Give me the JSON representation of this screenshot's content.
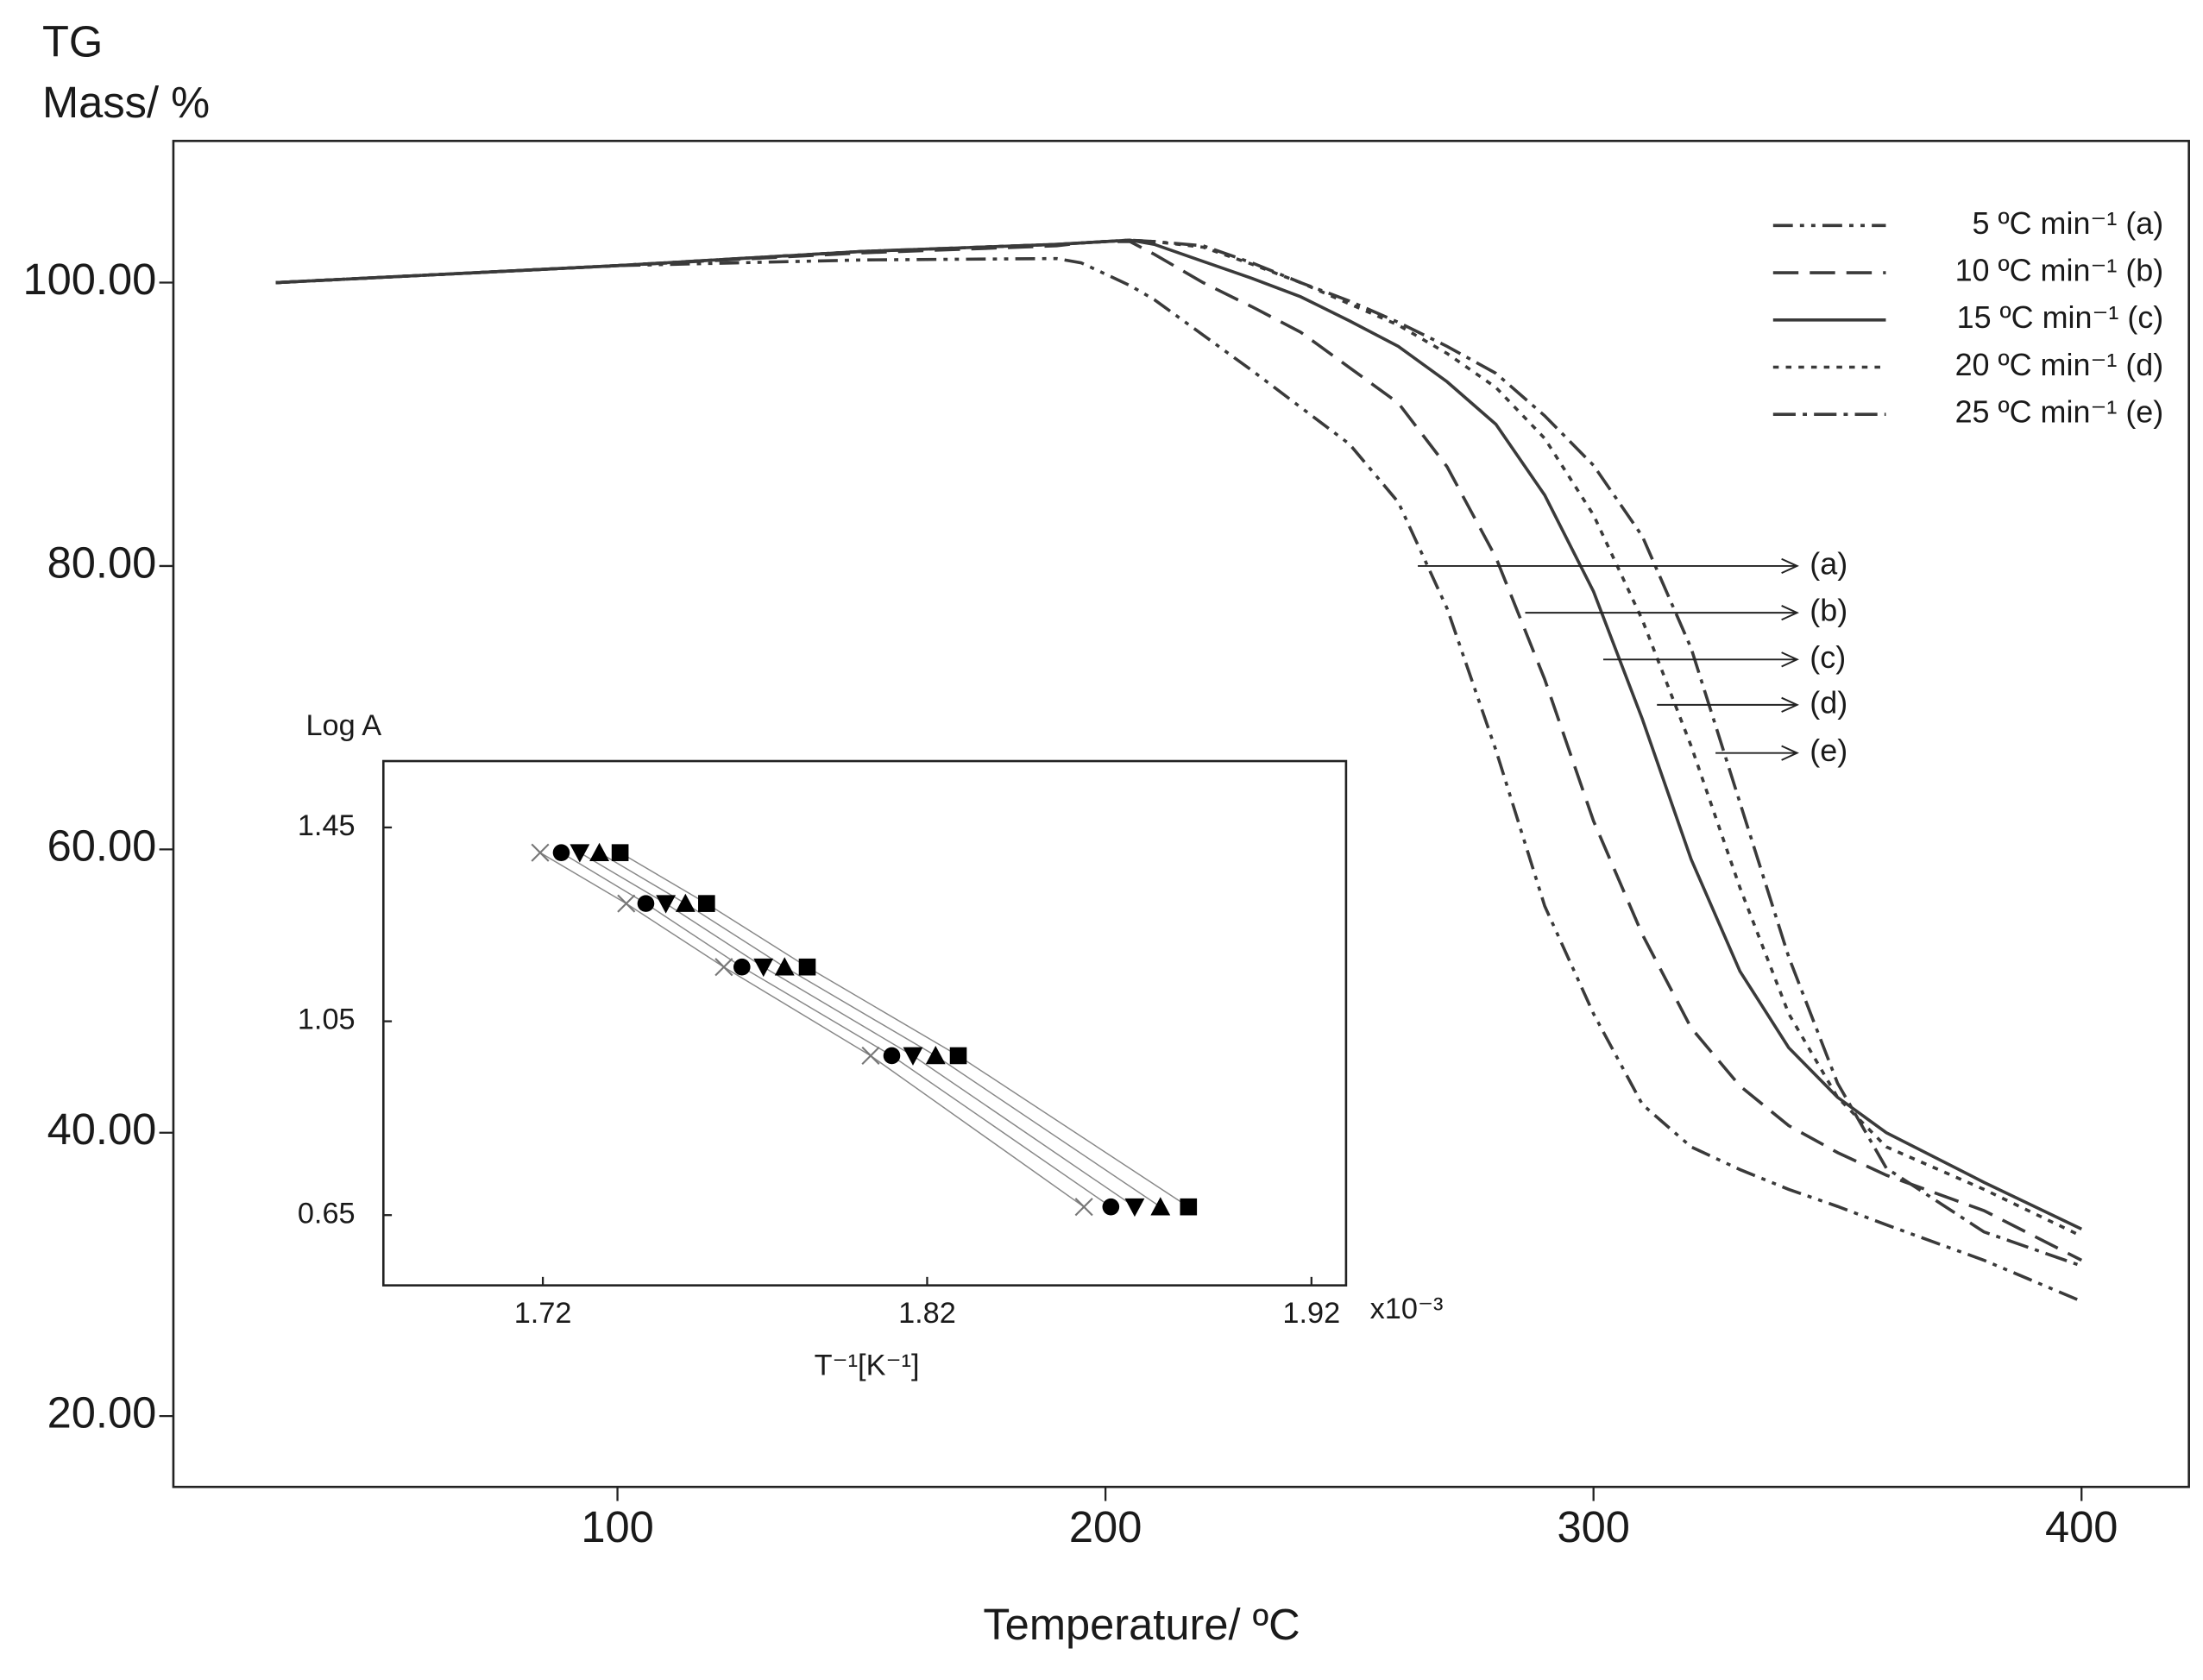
{
  "chart_data": [
    {
      "type": "line",
      "title": "TG",
      "ylabel": "Mass/ %",
      "xlabel": "Temperature/ ºC",
      "x": [
        30,
        100,
        150,
        190,
        195,
        200,
        205,
        210,
        220,
        230,
        240,
        250,
        260,
        270,
        280,
        290,
        300,
        310,
        320,
        330,
        340,
        350,
        360,
        380,
        400
      ],
      "series": [
        {
          "name": "5 ºC min⁻¹ (a)",
          "color": "#3a3a3a",
          "dash": "dashdotdot",
          "values": [
            100,
            101.2,
            101.6,
            101.7,
            101.4,
            100.6,
            99.8,
            98.8,
            96.3,
            93.8,
            91.2,
            88.6,
            84.5,
            77,
            67,
            56,
            48.4,
            42,
            39,
            37.4,
            36,
            34.8,
            33.5,
            31,
            28.1
          ]
        },
        {
          "name": "10 ºC min⁻¹ (b)",
          "color": "#3a3a3a",
          "dash": "dashed",
          "values": [
            100,
            101.2,
            102.1,
            102.6,
            102.8,
            102.9,
            102.9,
            102,
            100,
            98.3,
            96.5,
            94,
            91.5,
            87,
            80.6,
            72,
            62,
            54,
            47.4,
            43.3,
            40.5,
            38.6,
            37,
            34.5,
            31
          ]
        },
        {
          "name": "15 ºC min⁻¹ (c)",
          "color": "#3a3a3a",
          "dash": "solid",
          "values": [
            100,
            101.2,
            102.2,
            102.7,
            102.8,
            102.9,
            103,
            102.7,
            101.5,
            100.3,
            99,
            97.3,
            95.5,
            93,
            90,
            85,
            78.2,
            69.2,
            59.3,
            51.4,
            46,
            42.5,
            40,
            36.5,
            33.2
          ]
        },
        {
          "name": "20 ºC min⁻¹ (d)",
          "color": "#3a3a3a",
          "dash": "dotted",
          "values": [
            100,
            101.2,
            102.2,
            102.7,
            102.8,
            102.9,
            103,
            102.9,
            102.5,
            101.3,
            100,
            98.5,
            97,
            95,
            92.6,
            89,
            83.6,
            76.2,
            67.3,
            57.3,
            48.4,
            42.5,
            39,
            36,
            32.7
          ]
        },
        {
          "name": "25 ºC min⁻¹ (e)",
          "color": "#3a3a3a",
          "dash": "dashdot",
          "values": [
            100,
            101.2,
            102.2,
            102.7,
            102.8,
            102.9,
            103,
            102.9,
            102.6,
            101.4,
            100,
            98.7,
            97.2,
            95.5,
            93.6,
            90.6,
            87.1,
            82.1,
            74.2,
            63.3,
            52.4,
            43.5,
            37.5,
            33,
            30.6
          ]
        }
      ],
      "annotations": [
        {
          "text": "(a)",
          "x": 264,
          "y": 80
        },
        {
          "text": "(b)",
          "x": 286,
          "y": 76.7
        },
        {
          "text": "(c)",
          "x": 302,
          "y": 73.4
        },
        {
          "text": "(d)",
          "x": 313,
          "y": 70.2
        },
        {
          "text": "(e)",
          "x": 325,
          "y": 66.8
        }
      ],
      "xlim": [
        9,
        422
      ],
      "xticks": [
        100,
        200,
        300,
        400
      ],
      "ylim": [
        15,
        110
      ],
      "yticks": [
        {
          "value": 20,
          "label": "20.00"
        },
        {
          "value": 40,
          "label": "40.00"
        },
        {
          "value": 60,
          "label": "60.00"
        },
        {
          "value": 80,
          "label": "80.00"
        },
        {
          "value": 100,
          "label": "100.00"
        }
      ],
      "legend": "upper right"
    },
    {
      "type": "scatter",
      "ylabel": "Log A",
      "xlabel": "T⁻¹[K⁻¹]",
      "x_multiplier": "x10⁻³",
      "series": [
        {
          "marker": "x",
          "color": "#777777",
          "x": [
            1.7193,
            1.7417,
            1.7671,
            1.8053,
            1.8608
          ],
          "values": [
            1.398,
            1.293,
            1.162,
            0.979,
            0.667
          ]
        },
        {
          "marker": "circle",
          "color": "#000000",
          "x": [
            1.7248,
            1.7468,
            1.7718,
            1.8108,
            1.8678
          ],
          "values": [
            1.398,
            1.293,
            1.162,
            0.979,
            0.667
          ]
        },
        {
          "marker": "triangle-down",
          "color": "#000000",
          "x": [
            1.7296,
            1.752,
            1.7774,
            1.8163,
            1.874
          ],
          "values": [
            1.398,
            1.293,
            1.162,
            0.979,
            0.667
          ]
        },
        {
          "marker": "triangle-up",
          "color": "#000000",
          "x": [
            1.7347,
            1.7571,
            1.7829,
            1.8222,
            1.8807
          ],
          "values": [
            1.398,
            1.293,
            1.162,
            0.979,
            0.667
          ]
        },
        {
          "marker": "square",
          "color": "#000000",
          "x": [
            1.7401,
            1.7626,
            1.7888,
            1.8281,
            1.888
          ],
          "values": [
            1.398,
            1.293,
            1.162,
            0.979,
            0.667
          ]
        }
      ],
      "xlim": [
        1.6785,
        1.929
      ],
      "xticks": [
        1.72,
        1.82,
        1.92
      ],
      "ylim": [
        0.505,
        1.587
      ],
      "yticks": [
        0.65,
        1.05,
        1.45
      ]
    }
  ]
}
